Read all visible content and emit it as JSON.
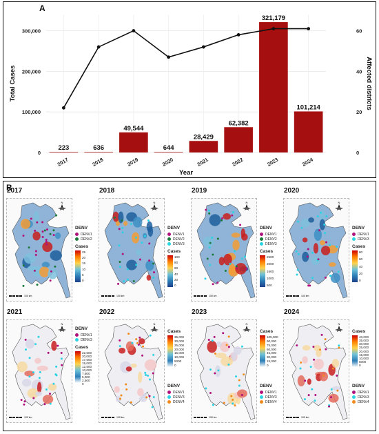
{
  "panel_a_label": "A",
  "panel_b_label": "B",
  "chart_data": {
    "type": "bar",
    "xlabel": "Year",
    "ylabel": "Total Cases",
    "y2label": "Affected districts",
    "categories": [
      "2017",
      "2018",
      "2019",
      "2020",
      "2021",
      "2022",
      "2023",
      "2024"
    ],
    "ylim": [
      0,
      340000
    ],
    "y2lim": [
      0,
      68
    ],
    "yticks": [
      "0",
      "100,000",
      "200,000",
      "300,000"
    ],
    "y2ticks": [
      "0",
      "20",
      "40",
      "60"
    ],
    "series": [
      {
        "type": "bar",
        "axis": "left",
        "values": [
          223,
          636,
          49544,
          644,
          28429,
          62382,
          321179,
          101214
        ],
        "labels": [
          "223",
          "636",
          "49,544",
          "644",
          "28,429",
          "62,382",
          "321,179",
          "101,214"
        ]
      },
      {
        "type": "line",
        "axis": "right",
        "values": [
          22,
          52,
          60,
          47,
          52,
          58,
          61,
          61
        ]
      }
    ],
    "colors": {
      "bar": "#a50f0f",
      "line": "#111111"
    }
  },
  "maps": [
    {
      "year": "2017",
      "legend_title": "DENV",
      "serotypes": [
        "DENV1",
        "DENV2"
      ],
      "cases_title": "Cases",
      "ticks": [
        "25",
        "20",
        "15",
        "10",
        "5",
        "0"
      ]
    },
    {
      "year": "2018",
      "legend_title": "DENV",
      "serotypes": [
        "DENV1",
        "DENV2",
        "DENV3"
      ],
      "cases_title": "Cases",
      "ticks": [
        "100",
        "80",
        "60",
        "40",
        "20",
        "0"
      ]
    },
    {
      "year": "2019",
      "legend_title": "DENV",
      "serotypes": [
        "DENV1",
        "DENV2",
        "DENV3"
      ],
      "cases_title": "Cases",
      "ticks": [
        "2500",
        "2000",
        "1500",
        "1000",
        "500"
      ]
    },
    {
      "year": "2020",
      "legend_title": "DENV",
      "serotypes": [
        "DENV1",
        "DENV3"
      ],
      "cases_title": "Cases",
      "ticks": [
        "80",
        "60",
        "40",
        "20",
        "0"
      ]
    },
    {
      "year": "2021",
      "legend_title": "DENV",
      "serotypes": [
        "DENV1",
        "DENV3"
      ],
      "cases_title": "Cases",
      "ticks": [
        "22,500",
        "20,000",
        "17,500",
        "15,000",
        "12,500",
        "10,000",
        "7,500",
        "5,000",
        "2,500",
        "0"
      ]
    },
    {
      "year": "2022",
      "legend_title": "DENV",
      "serotypes": [
        "DENV1",
        "DENV3",
        "DENV4"
      ],
      "cases_title": "Cases",
      "ticks": [
        "35,000",
        "30,000",
        "25,000",
        "20,000",
        "15,000",
        "10,000",
        "5000",
        "0"
      ]
    },
    {
      "year": "2023",
      "legend_title": "DENV",
      "serotypes": [
        "DENV1",
        "DENV3",
        "DENV4"
      ],
      "cases_title": "Cases",
      "ticks": [
        "105,000",
        "90,000",
        "75,000",
        "60,000",
        "45,000",
        "30,000",
        "15,000",
        "0"
      ]
    },
    {
      "year": "2024",
      "legend_title": "DENV",
      "serotypes": [
        "DENV1",
        "DENV3",
        "DENV4"
      ],
      "cases_title": "Cases",
      "ticks": [
        "40,000",
        "35,000",
        "30,000",
        "25,000",
        "20,000",
        "15,000",
        "10,000",
        "5000",
        "0"
      ]
    }
  ],
  "serotype_colors": {
    "DENV1": "#b0127d",
    "DENV2": "#1b7a3a",
    "DENV3": "#29d3e3",
    "DENV4": "#f08a1c"
  },
  "scale_label": "100 km",
  "north_label": "N"
}
